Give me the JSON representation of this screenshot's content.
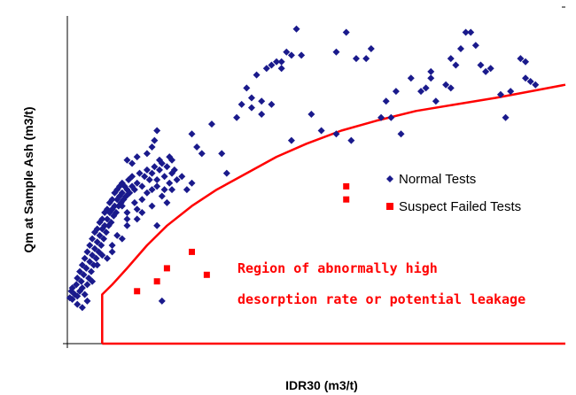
{
  "chart_data": {
    "type": "scatter",
    "title": "",
    "xlabel": "IDR30 (m3/t)",
    "ylabel": "Qm at Sample Ash (m3/t)",
    "xlim": [
      0,
      100
    ],
    "ylim": [
      0,
      100
    ],
    "grid": false,
    "legend_position": "right-middle",
    "series": [
      {
        "name": "Normal Tests",
        "marker": "diamond",
        "color": "#1a1a8c",
        "points": [
          [
            0.5,
            14
          ],
          [
            0.8,
            16
          ],
          [
            1,
            13.5
          ],
          [
            1,
            17
          ],
          [
            1.5,
            15
          ],
          [
            1.8,
            18
          ],
          [
            2,
            14.5
          ],
          [
            2,
            20
          ],
          [
            2.5,
            16
          ],
          [
            2.5,
            22
          ],
          [
            2.8,
            19
          ],
          [
            3,
            17
          ],
          [
            3,
            24
          ],
          [
            3.3,
            21
          ],
          [
            3.5,
            15
          ],
          [
            3.5,
            26
          ],
          [
            3.8,
            23
          ],
          [
            4,
            18
          ],
          [
            4,
            28
          ],
          [
            4.3,
            20
          ],
          [
            4.5,
            25
          ],
          [
            4.5,
            30
          ],
          [
            4.8,
            22
          ],
          [
            5,
            27
          ],
          [
            5,
            32
          ],
          [
            5.3,
            24
          ],
          [
            5.5,
            29
          ],
          [
            5.5,
            34
          ],
          [
            5.8,
            26
          ],
          [
            6,
            31
          ],
          [
            6,
            35
          ],
          [
            6.3,
            28
          ],
          [
            6.5,
            33
          ],
          [
            6.5,
            37
          ],
          [
            6.8,
            30
          ],
          [
            7,
            35
          ],
          [
            7,
            38
          ],
          [
            7.3,
            32
          ],
          [
            7.5,
            36
          ],
          [
            7.5,
            40
          ],
          [
            7.8,
            34
          ],
          [
            8,
            38
          ],
          [
            8,
            41
          ],
          [
            8.3,
            36
          ],
          [
            8.5,
            40
          ],
          [
            8.5,
            43
          ],
          [
            8.8,
            37
          ],
          [
            9,
            41
          ],
          [
            9,
            44
          ],
          [
            9.3,
            39
          ],
          [
            9.5,
            42
          ],
          [
            9.5,
            46
          ],
          [
            9.8,
            40
          ],
          [
            10,
            44
          ],
          [
            10,
            47
          ],
          [
            10.3,
            42
          ],
          [
            10.5,
            45
          ],
          [
            10.5,
            48
          ],
          [
            10.8,
            43
          ],
          [
            11,
            46
          ],
          [
            11,
            49
          ],
          [
            11.3,
            44
          ],
          [
            11.5,
            48
          ],
          [
            11.8,
            45
          ],
          [
            12,
            47
          ],
          [
            12.3,
            50
          ],
          [
            12.5,
            46
          ],
          [
            13,
            48
          ],
          [
            13,
            51
          ],
          [
            13.5,
            47
          ],
          [
            14,
            49
          ],
          [
            14.5,
            52
          ],
          [
            15,
            48
          ],
          [
            15.5,
            51
          ],
          [
            16,
            53
          ],
          [
            16.5,
            50
          ],
          [
            17,
            52
          ],
          [
            17.5,
            54
          ],
          [
            18,
            50
          ],
          [
            18.5,
            53
          ],
          [
            19,
            55
          ],
          [
            19.5,
            51
          ],
          [
            20,
            54
          ],
          [
            20.5,
            49
          ],
          [
            21,
            52
          ],
          [
            22,
            50
          ],
          [
            11,
            42
          ],
          [
            12,
            40
          ],
          [
            13.5,
            43
          ],
          [
            15,
            44
          ],
          [
            16,
            46
          ],
          [
            17,
            47
          ],
          [
            19,
            45
          ],
          [
            20,
            43
          ],
          [
            21,
            47
          ],
          [
            6,
            24
          ],
          [
            7,
            27
          ],
          [
            8,
            26
          ],
          [
            9,
            30
          ],
          [
            10,
            33
          ],
          [
            12,
            36
          ],
          [
            14,
            38
          ],
          [
            15,
            40
          ],
          [
            17,
            42
          ],
          [
            18,
            48
          ],
          [
            19.5,
            47
          ],
          [
            20.5,
            57
          ],
          [
            21.5,
            53
          ],
          [
            23,
            51
          ],
          [
            24,
            47
          ],
          [
            25,
            49
          ],
          [
            2,
            12
          ],
          [
            3,
            11
          ],
          [
            4,
            13
          ],
          [
            5,
            19
          ],
          [
            16,
            58
          ],
          [
            17,
            60
          ],
          [
            18.5,
            56
          ],
          [
            17.5,
            62
          ],
          [
            18,
            65
          ],
          [
            14,
            57
          ],
          [
            13,
            55
          ],
          [
            12,
            56
          ],
          [
            18,
            36
          ],
          [
            12,
            38
          ],
          [
            11,
            32
          ],
          [
            9,
            28
          ],
          [
            14,
            41
          ],
          [
            21,
            56
          ],
          [
            19,
            13
          ],
          [
            29,
            67
          ],
          [
            26,
            60
          ],
          [
            25,
            64
          ],
          [
            27,
            58
          ],
          [
            35,
            73
          ],
          [
            37,
            75
          ],
          [
            39,
            74
          ],
          [
            34,
            69
          ],
          [
            36,
            78
          ],
          [
            38,
            82
          ],
          [
            40,
            84
          ],
          [
            41,
            85
          ],
          [
            42,
            86
          ],
          [
            43,
            86
          ],
          [
            44,
            89
          ],
          [
            47,
            88
          ],
          [
            46,
            96
          ],
          [
            49,
            70
          ],
          [
            51,
            65
          ],
          [
            54,
            89
          ],
          [
            56,
            95
          ],
          [
            57,
            62
          ],
          [
            58,
            87
          ],
          [
            61,
            90
          ],
          [
            63,
            69
          ],
          [
            64,
            74
          ],
          [
            65,
            69
          ],
          [
            66,
            77
          ],
          [
            67,
            64
          ],
          [
            69,
            81
          ],
          [
            72,
            78
          ],
          [
            73,
            83
          ],
          [
            74,
            74
          ],
          [
            76,
            79
          ],
          [
            77,
            87
          ],
          [
            78,
            85
          ],
          [
            79,
            90
          ],
          [
            80,
            95
          ],
          [
            81,
            95
          ],
          [
            82,
            91
          ],
          [
            83,
            85
          ],
          [
            84,
            83
          ],
          [
            85,
            84
          ],
          [
            88,
            69
          ],
          [
            91,
            87
          ],
          [
            92,
            86
          ],
          [
            93,
            80
          ],
          [
            94,
            79
          ],
          [
            89,
            77
          ],
          [
            92,
            81
          ],
          [
            87,
            76
          ],
          [
            77,
            78
          ],
          [
            73,
            81
          ],
          [
            71,
            77
          ],
          [
            60,
            87
          ],
          [
            45,
            88
          ],
          [
            43,
            84
          ],
          [
            41,
            73
          ],
          [
            39,
            70
          ],
          [
            37,
            72
          ],
          [
            31,
            58
          ],
          [
            32,
            52
          ],
          [
            45,
            62
          ],
          [
            54,
            64
          ]
        ]
      },
      {
        "name": "Suspect Failed Tests",
        "marker": "square",
        "color": "#ff0000",
        "points": [
          [
            14,
            16
          ],
          [
            18,
            19
          ],
          [
            20,
            23
          ],
          [
            25,
            28
          ],
          [
            28,
            21
          ],
          [
            56,
            48
          ],
          [
            56,
            44
          ]
        ]
      }
    ],
    "boundary_curve": {
      "color": "#ff0000",
      "points": [
        [
          7,
          0
        ],
        [
          7,
          15
        ],
        [
          9,
          18
        ],
        [
          12,
          23
        ],
        [
          16,
          30
        ],
        [
          20,
          36
        ],
        [
          25,
          42
        ],
        [
          30,
          47
        ],
        [
          36,
          52
        ],
        [
          42,
          57
        ],
        [
          48,
          61
        ],
        [
          55,
          65
        ],
        [
          62,
          68
        ],
        [
          70,
          71
        ],
        [
          78,
          73
        ],
        [
          86,
          75
        ],
        [
          93,
          77
        ],
        [
          100,
          79
        ]
      ],
      "bottom_y": 0
    },
    "annotations": [
      "Region of abnormally high",
      "desorption rate or potential leakage"
    ]
  }
}
